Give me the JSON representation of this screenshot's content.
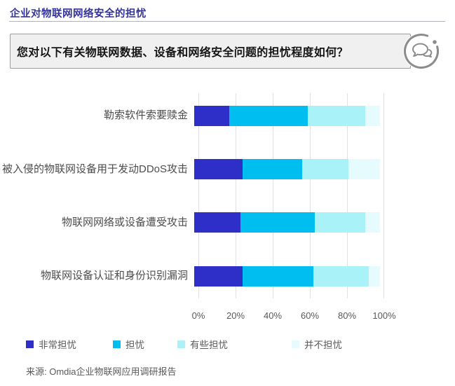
{
  "page": {
    "title": "企业对物联网网络安全的担忧",
    "question": "您对以下有关物联网数据、设备和网络安全问题的担忧程度如何？",
    "source": "来源: Omdia企业物联网应用调研报告"
  },
  "colors": {
    "title": "#33339e",
    "question_box_bg": "#f0f0f0",
    "gridline": "#e1e1e5",
    "icon_gray": "#8c8c8c",
    "series": [
      "#2e2ec8",
      "#00bef0",
      "#a9f3f8",
      "#e6fbfd"
    ]
  },
  "icons": [
    {
      "name": "chat-bubble-icon",
      "description": "two overlapping speech bubbles inside a broken circular ring with a dot"
    }
  ],
  "chart_data": {
    "type": "bar",
    "orientation": "horizontal",
    "stacked": true,
    "title": "您对以下有关物联网数据、设备和网络安全问题的担忧程度如何？",
    "xlabel": "",
    "ylabel": "",
    "xlim": [
      0,
      100
    ],
    "grid": "vertical",
    "legend_position": "bottom",
    "x_ticks": [
      "0%",
      "20%",
      "40%",
      "60%",
      "80%",
      "100%"
    ],
    "categories": [
      "勒索软件索要赎金",
      "被入侵的物联网设备用于发动DDoS攻击",
      "物联网网络或设备遭受攻击",
      "物联网设备认证和身份识别漏洞"
    ],
    "series": [
      {
        "name": "非常担忧",
        "color": "#2e2ec8",
        "values": [
          19,
          26,
          25,
          26
        ]
      },
      {
        "name": "担忧",
        "color": "#00bef0",
        "values": [
          42,
          32,
          40,
          38
        ]
      },
      {
        "name": "有些担忧",
        "color": "#a9f3f8",
        "values": [
          31,
          25,
          27,
          30
        ]
      },
      {
        "name": "并不担忧",
        "color": "#e6fbfd",
        "values": [
          8,
          17,
          8,
          6
        ]
      }
    ]
  }
}
